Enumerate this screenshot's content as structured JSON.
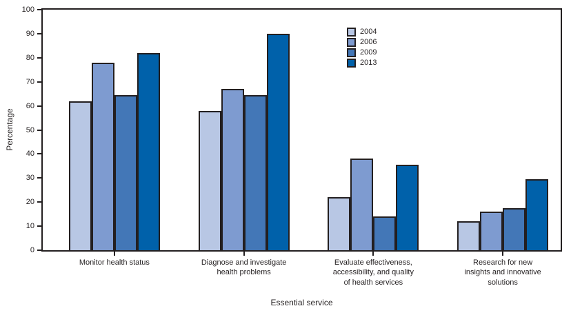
{
  "chart_data": {
    "type": "bar",
    "title": "",
    "xlabel": "Essential service",
    "ylabel": "Percentage",
    "ylim": [
      0,
      100
    ],
    "ytick_step": 10,
    "grid": false,
    "legend_position": "top-center",
    "categories": [
      "Monitor health status",
      "Diagnose and investigate\nhealth problems",
      "Evaluate effectiveness,\naccessibility, and quality\nof health services",
      "Research for new\ninsights and innovative\nsolutions"
    ],
    "series": [
      {
        "name": "2004",
        "color": "#b8c7e4",
        "values": [
          62,
          58,
          22,
          12
        ]
      },
      {
        "name": "2006",
        "color": "#7e9bd0",
        "values": [
          78,
          67,
          38,
          16
        ]
      },
      {
        "name": "2009",
        "color": "#4377b7",
        "values": [
          64.5,
          64.5,
          14,
          17.5
        ]
      },
      {
        "name": "2013",
        "color": "#0061aa",
        "values": [
          82,
          90,
          35.5,
          29.5
        ]
      }
    ],
    "bar_outline_color": "#231f20",
    "axis_color": "#231f20",
    "text_color": "#231f20",
    "background_color": "#ffffff"
  }
}
